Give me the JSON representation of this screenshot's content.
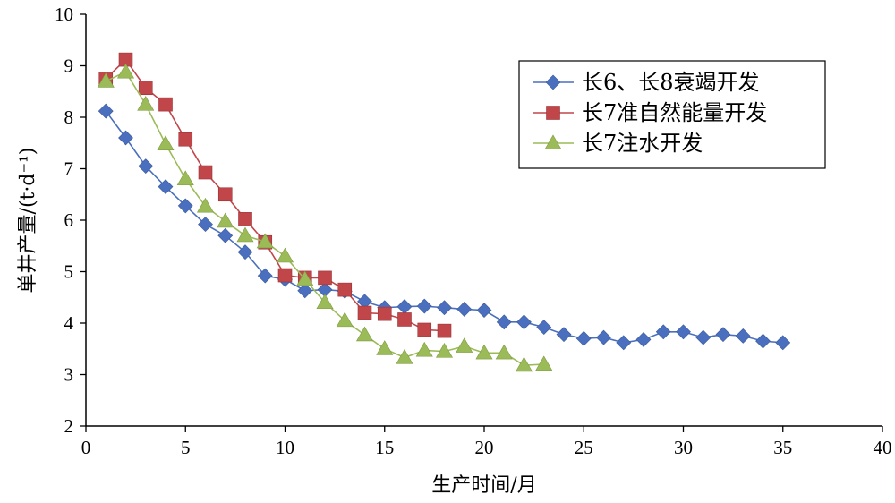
{
  "chart_data": {
    "type": "line",
    "xlabel": "生产时间/月",
    "ylabel": "单井产量/(t·d⁻¹)",
    "xlim": [
      0,
      40
    ],
    "ylim": [
      2,
      10
    ],
    "x_ticks": [
      "0",
      "5",
      "10",
      "15",
      "20",
      "25",
      "30",
      "35",
      "40"
    ],
    "y_ticks": [
      "2",
      "3",
      "4",
      "5",
      "6",
      "7",
      "8",
      "9",
      "10"
    ],
    "grid": false,
    "legend_position": "top-right",
    "series": [
      {
        "name": "长6、长8衰竭开发",
        "color": "#4a6fbf",
        "marker": "diamond",
        "x": [
          1,
          2,
          3,
          4,
          5,
          6,
          7,
          8,
          9,
          10,
          11,
          12,
          13,
          14,
          15,
          16,
          17,
          18,
          19,
          20,
          21,
          22,
          23,
          24,
          25,
          26,
          27,
          28,
          29,
          30,
          31,
          32,
          33,
          34,
          35
        ],
        "y": [
          8.12,
          7.6,
          7.05,
          6.65,
          6.28,
          5.92,
          5.7,
          5.38,
          4.92,
          4.85,
          4.63,
          4.65,
          4.62,
          4.42,
          4.3,
          4.32,
          4.33,
          4.3,
          4.27,
          4.25,
          4.02,
          4.02,
          3.92,
          3.78,
          3.7,
          3.72,
          3.62,
          3.68,
          3.83,
          3.83,
          3.72,
          3.78,
          3.75,
          3.65,
          3.62
        ]
      },
      {
        "name": "长7准自然能量开发",
        "color": "#c0464a",
        "marker": "square",
        "x": [
          1,
          2,
          3,
          4,
          5,
          6,
          7,
          8,
          9,
          10,
          11,
          12,
          13,
          14,
          15,
          16,
          17,
          18
        ],
        "y": [
          8.75,
          9.12,
          8.57,
          8.25,
          7.57,
          6.93,
          6.5,
          6.02,
          5.57,
          4.93,
          4.88,
          4.88,
          4.65,
          4.2,
          4.18,
          4.07,
          3.87,
          3.85
        ]
      },
      {
        "name": "长7注水开发",
        "color": "#9bbb59",
        "marker": "triangle",
        "x": [
          1,
          2,
          3,
          4,
          5,
          6,
          7,
          8,
          9,
          10,
          11,
          12,
          13,
          14,
          15,
          16,
          17,
          18,
          19,
          20,
          21,
          22,
          23
        ],
        "y": [
          8.7,
          8.88,
          8.25,
          7.48,
          6.8,
          6.27,
          5.98,
          5.7,
          5.58,
          5.3,
          4.85,
          4.4,
          4.05,
          3.77,
          3.5,
          3.33,
          3.47,
          3.45,
          3.55,
          3.42,
          3.42,
          3.18,
          3.2
        ]
      }
    ]
  }
}
